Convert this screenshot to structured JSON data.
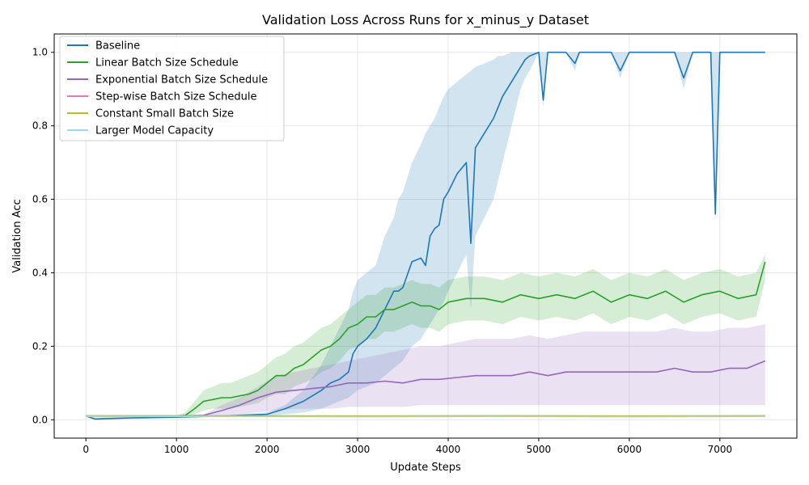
{
  "chart_data": {
    "type": "line",
    "title": "Validation Loss Across Runs for x_minus_y Dataset",
    "xlabel": "Update Steps",
    "ylabel": "Validation Acc",
    "xlim": [
      -350,
      7850
    ],
    "ylim": [
      -0.05,
      1.05
    ],
    "xticks": [
      0,
      1000,
      2000,
      3000,
      4000,
      5000,
      6000,
      7000
    ],
    "yticks": [
      0.0,
      0.2,
      0.4,
      0.6,
      0.8,
      1.0
    ],
    "grid": true,
    "legend_position": "upper-left",
    "series": [
      {
        "name": "Baseline",
        "color": "#1f77b4",
        "x": [
          0,
          100,
          500,
          1000,
          1500,
          2000,
          2200,
          2400,
          2600,
          2700,
          2800,
          2900,
          2950,
          3000,
          3100,
          3200,
          3300,
          3400,
          3450,
          3500,
          3600,
          3700,
          3750,
          3800,
          3850,
          3900,
          3950,
          4000,
          4100,
          4200,
          4250,
          4300,
          4400,
          4500,
          4550,
          4600,
          4700,
          4800,
          4850,
          4900,
          5000,
          5050,
          5100,
          5200,
          5300,
          5400,
          5450,
          5500,
          5800,
          5900,
          6000,
          6200,
          6300,
          6500,
          6600,
          6700,
          6900,
          6950,
          7000,
          7200,
          7300,
          7400,
          7500
        ],
        "y": [
          0.01,
          0.002,
          0.005,
          0.007,
          0.01,
          0.015,
          0.03,
          0.05,
          0.08,
          0.1,
          0.11,
          0.13,
          0.18,
          0.2,
          0.22,
          0.25,
          0.3,
          0.35,
          0.35,
          0.36,
          0.43,
          0.44,
          0.42,
          0.5,
          0.52,
          0.53,
          0.6,
          0.62,
          0.67,
          0.7,
          0.48,
          0.74,
          0.78,
          0.82,
          0.85,
          0.88,
          0.92,
          0.96,
          0.98,
          0.99,
          1.0,
          0.87,
          1.0,
          1.0,
          1.0,
          0.97,
          1.0,
          1.0,
          1.0,
          0.95,
          1.0,
          1.0,
          1.0,
          1.0,
          0.93,
          1.0,
          1.0,
          0.56,
          1.0,
          1.0,
          1.0,
          1.0,
          1.0
        ],
        "band_upper": [
          0.012,
          0.006,
          0.008,
          0.009,
          0.012,
          0.02,
          0.04,
          0.08,
          0.15,
          0.2,
          0.25,
          0.3,
          0.35,
          0.38,
          0.4,
          0.42,
          0.5,
          0.55,
          0.6,
          0.62,
          0.7,
          0.75,
          0.78,
          0.8,
          0.82,
          0.85,
          0.88,
          0.9,
          0.92,
          0.94,
          0.95,
          0.96,
          0.97,
          0.98,
          0.99,
          0.99,
          1.0,
          1.0,
          1.0,
          1.0,
          1.0,
          1.0,
          1.0,
          1.0,
          1.0,
          1.0,
          1.0,
          1.0,
          1.0,
          1.0,
          1.0,
          1.0,
          1.0,
          1.0,
          1.0,
          1.0,
          1.0,
          1.0,
          1.0,
          1.0,
          1.0,
          1.0,
          1.0
        ],
        "band_lower": [
          0.008,
          0.0,
          0.002,
          0.005,
          0.008,
          0.01,
          0.015,
          0.02,
          0.03,
          0.04,
          0.05,
          0.06,
          0.07,
          0.08,
          0.09,
          0.1,
          0.12,
          0.14,
          0.15,
          0.16,
          0.2,
          0.22,
          0.24,
          0.26,
          0.28,
          0.3,
          0.32,
          0.35,
          0.4,
          0.45,
          0.3,
          0.5,
          0.55,
          0.6,
          0.65,
          0.7,
          0.8,
          0.9,
          0.93,
          0.95,
          1.0,
          0.85,
          1.0,
          1.0,
          1.0,
          0.95,
          1.0,
          1.0,
          1.0,
          0.93,
          1.0,
          1.0,
          1.0,
          1.0,
          0.9,
          1.0,
          1.0,
          0.54,
          1.0,
          1.0,
          1.0,
          1.0,
          1.0
        ]
      },
      {
        "name": "Linear Batch Size Schedule",
        "color": "#2ca02c",
        "x": [
          0,
          500,
          1000,
          1100,
          1200,
          1300,
          1400,
          1500,
          1600,
          1700,
          1800,
          1900,
          2000,
          2100,
          2200,
          2300,
          2400,
          2500,
          2600,
          2700,
          2800,
          2900,
          3000,
          3100,
          3200,
          3300,
          3400,
          3500,
          3600,
          3700,
          3800,
          3900,
          4000,
          4200,
          4400,
          4600,
          4800,
          5000,
          5200,
          5400,
          5600,
          5800,
          6000,
          6200,
          6400,
          6600,
          6800,
          7000,
          7200,
          7400,
          7500
        ],
        "y": [
          0.01,
          0.01,
          0.01,
          0.012,
          0.03,
          0.05,
          0.055,
          0.06,
          0.06,
          0.065,
          0.07,
          0.08,
          0.1,
          0.12,
          0.12,
          0.14,
          0.15,
          0.17,
          0.19,
          0.2,
          0.22,
          0.25,
          0.26,
          0.28,
          0.28,
          0.3,
          0.3,
          0.31,
          0.32,
          0.31,
          0.31,
          0.3,
          0.32,
          0.33,
          0.33,
          0.32,
          0.34,
          0.33,
          0.34,
          0.33,
          0.35,
          0.32,
          0.34,
          0.33,
          0.35,
          0.32,
          0.34,
          0.35,
          0.33,
          0.34,
          0.43
        ],
        "band_upper": [
          0.012,
          0.012,
          0.012,
          0.02,
          0.05,
          0.08,
          0.09,
          0.1,
          0.1,
          0.11,
          0.12,
          0.13,
          0.15,
          0.17,
          0.18,
          0.2,
          0.21,
          0.23,
          0.25,
          0.26,
          0.28,
          0.3,
          0.32,
          0.34,
          0.34,
          0.36,
          0.36,
          0.37,
          0.38,
          0.37,
          0.37,
          0.36,
          0.38,
          0.39,
          0.39,
          0.38,
          0.4,
          0.39,
          0.4,
          0.39,
          0.41,
          0.38,
          0.4,
          0.39,
          0.41,
          0.38,
          0.4,
          0.41,
          0.39,
          0.4,
          0.45
        ],
        "band_lower": [
          0.008,
          0.008,
          0.008,
          0.008,
          0.015,
          0.025,
          0.03,
          0.03,
          0.03,
          0.035,
          0.04,
          0.045,
          0.06,
          0.07,
          0.07,
          0.09,
          0.1,
          0.11,
          0.13,
          0.14,
          0.16,
          0.19,
          0.2,
          0.22,
          0.22,
          0.24,
          0.24,
          0.25,
          0.26,
          0.25,
          0.25,
          0.24,
          0.26,
          0.27,
          0.27,
          0.26,
          0.28,
          0.27,
          0.28,
          0.27,
          0.29,
          0.26,
          0.28,
          0.27,
          0.29,
          0.26,
          0.28,
          0.29,
          0.27,
          0.28,
          0.38
        ]
      },
      {
        "name": "Exponential Batch Size Schedule",
        "color": "#9467bd",
        "x": [
          0,
          500,
          1000,
          1300,
          1500,
          1700,
          1900,
          2100,
          2300,
          2500,
          2700,
          2900,
          3100,
          3300,
          3500,
          3700,
          3900,
          4100,
          4300,
          4500,
          4700,
          4900,
          5100,
          5300,
          5500,
          5700,
          5900,
          6100,
          6300,
          6500,
          6700,
          6900,
          7100,
          7300,
          7500
        ],
        "y": [
          0.01,
          0.01,
          0.01,
          0.012,
          0.025,
          0.04,
          0.06,
          0.075,
          0.08,
          0.085,
          0.09,
          0.1,
          0.1,
          0.105,
          0.1,
          0.11,
          0.11,
          0.115,
          0.12,
          0.12,
          0.12,
          0.13,
          0.12,
          0.13,
          0.13,
          0.13,
          0.13,
          0.13,
          0.13,
          0.14,
          0.13,
          0.13,
          0.14,
          0.14,
          0.16
        ],
        "band_upper": [
          0.012,
          0.012,
          0.012,
          0.015,
          0.04,
          0.06,
          0.09,
          0.12,
          0.13,
          0.14,
          0.15,
          0.16,
          0.17,
          0.18,
          0.19,
          0.2,
          0.2,
          0.21,
          0.22,
          0.22,
          0.22,
          0.23,
          0.22,
          0.23,
          0.24,
          0.24,
          0.24,
          0.24,
          0.24,
          0.25,
          0.24,
          0.24,
          0.25,
          0.25,
          0.26
        ],
        "band_lower": [
          0.008,
          0.008,
          0.008,
          0.008,
          0.01,
          0.015,
          0.02,
          0.025,
          0.03,
          0.03,
          0.03,
          0.035,
          0.035,
          0.035,
          0.035,
          0.04,
          0.04,
          0.04,
          0.04,
          0.04,
          0.04,
          0.04,
          0.04,
          0.04,
          0.04,
          0.04,
          0.04,
          0.04,
          0.04,
          0.04,
          0.04,
          0.04,
          0.04,
          0.04,
          0.04
        ]
      },
      {
        "name": "Step-wise Batch Size Schedule",
        "color": "#e377c2",
        "x": [
          0,
          1500,
          3000,
          4500,
          6000,
          7500
        ],
        "y": [
          0.01,
          0.01,
          0.01,
          0.01,
          0.01,
          0.01
        ]
      },
      {
        "name": "Constant Small Batch Size",
        "color": "#bcbd22",
        "x": [
          0,
          1500,
          3000,
          4500,
          6000,
          7500
        ],
        "y": [
          0.01,
          0.011,
          0.01,
          0.011,
          0.01,
          0.011
        ]
      },
      {
        "name": "Larger Model Capacity",
        "color": "#9edae5",
        "x": [
          0,
          1500,
          3000,
          4500,
          6000,
          7500
        ],
        "y": [
          0.009,
          0.009,
          0.008,
          0.009,
          0.008,
          0.009
        ]
      }
    ]
  }
}
